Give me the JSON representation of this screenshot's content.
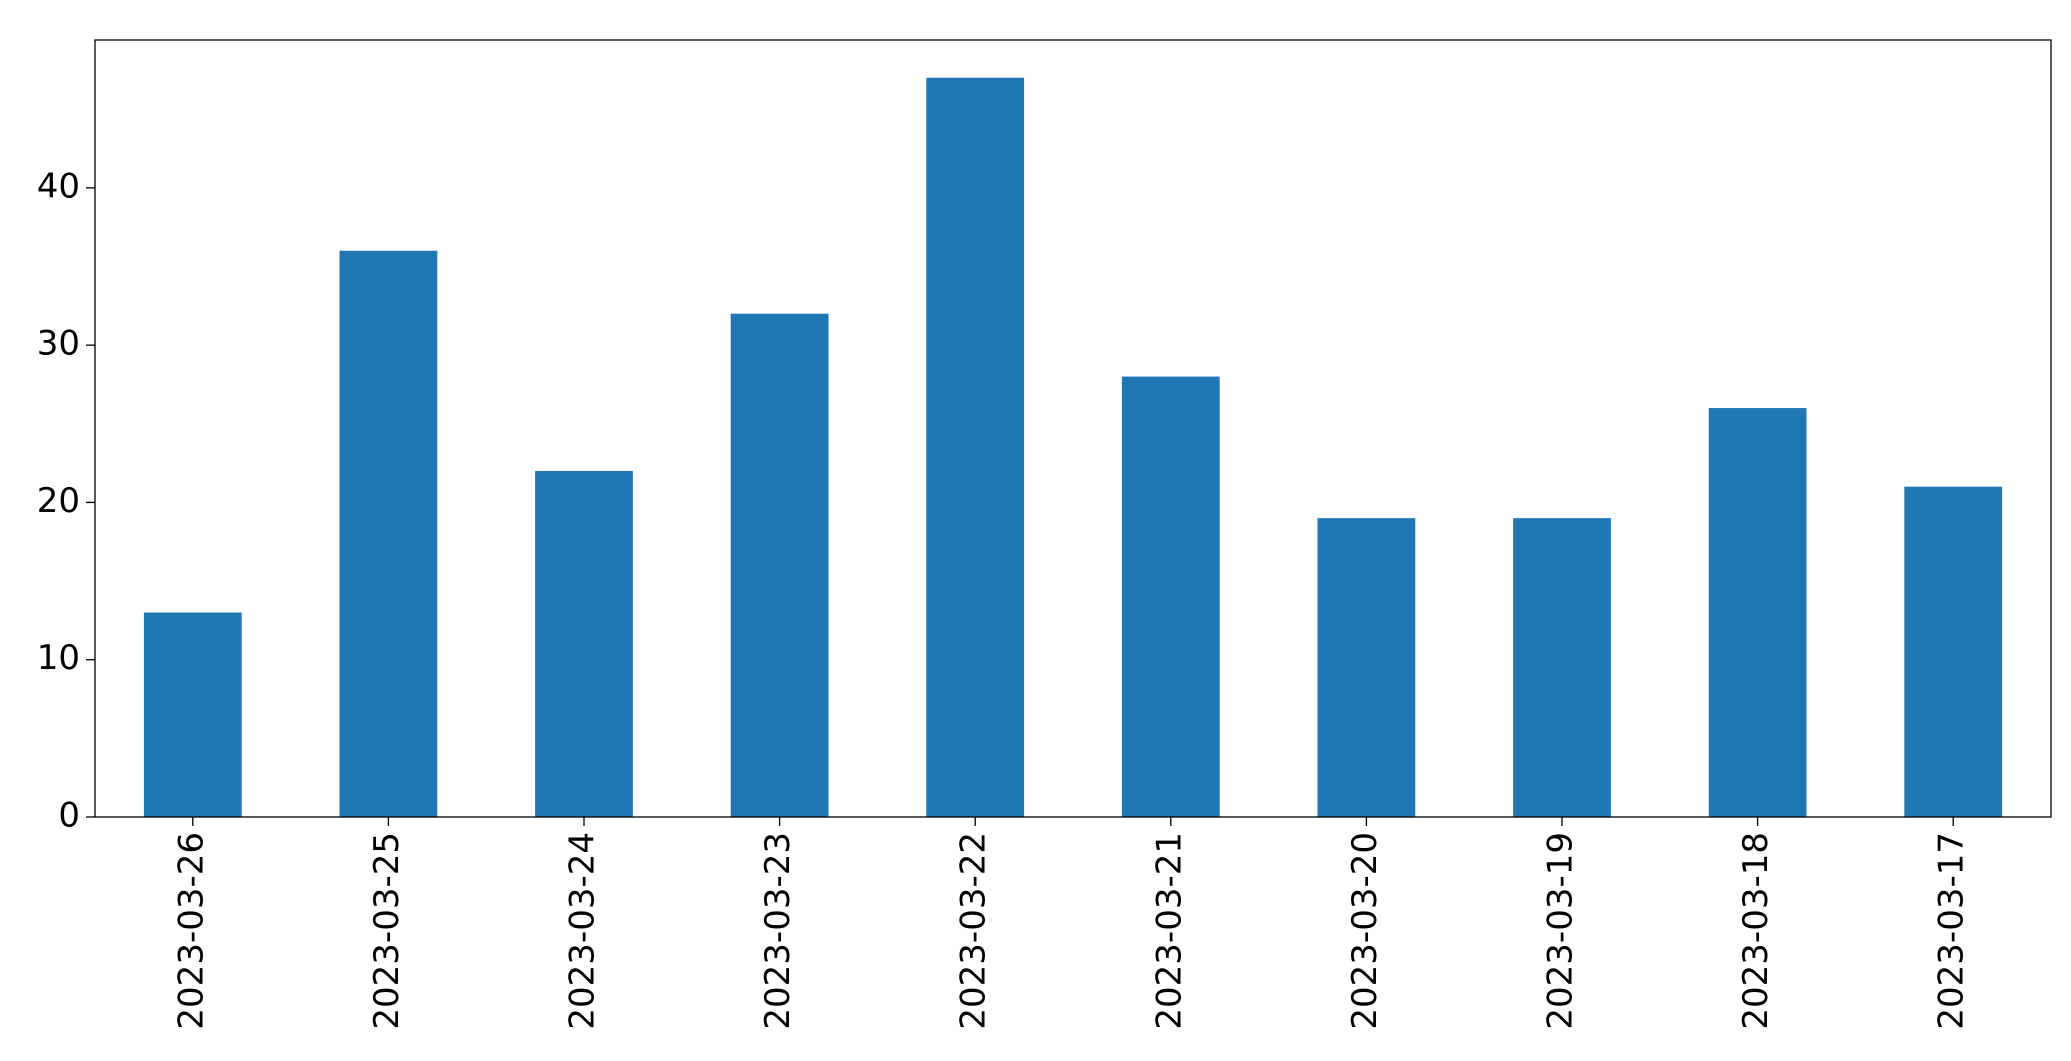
{
  "chart_data": {
    "type": "bar",
    "categories": [
      "2023-03-26",
      "2023-03-25",
      "2023-03-24",
      "2023-03-23",
      "2023-03-22",
      "2023-03-21",
      "2023-03-20",
      "2023-03-19",
      "2023-03-18",
      "2023-03-17"
    ],
    "values": [
      13,
      36,
      22,
      32,
      47,
      28,
      19,
      19,
      26,
      21
    ],
    "color": "#1f77b4",
    "ylim": [
      0,
      49.4
    ],
    "yticks": [
      0,
      10,
      20,
      30,
      40
    ],
    "grid": false
  }
}
